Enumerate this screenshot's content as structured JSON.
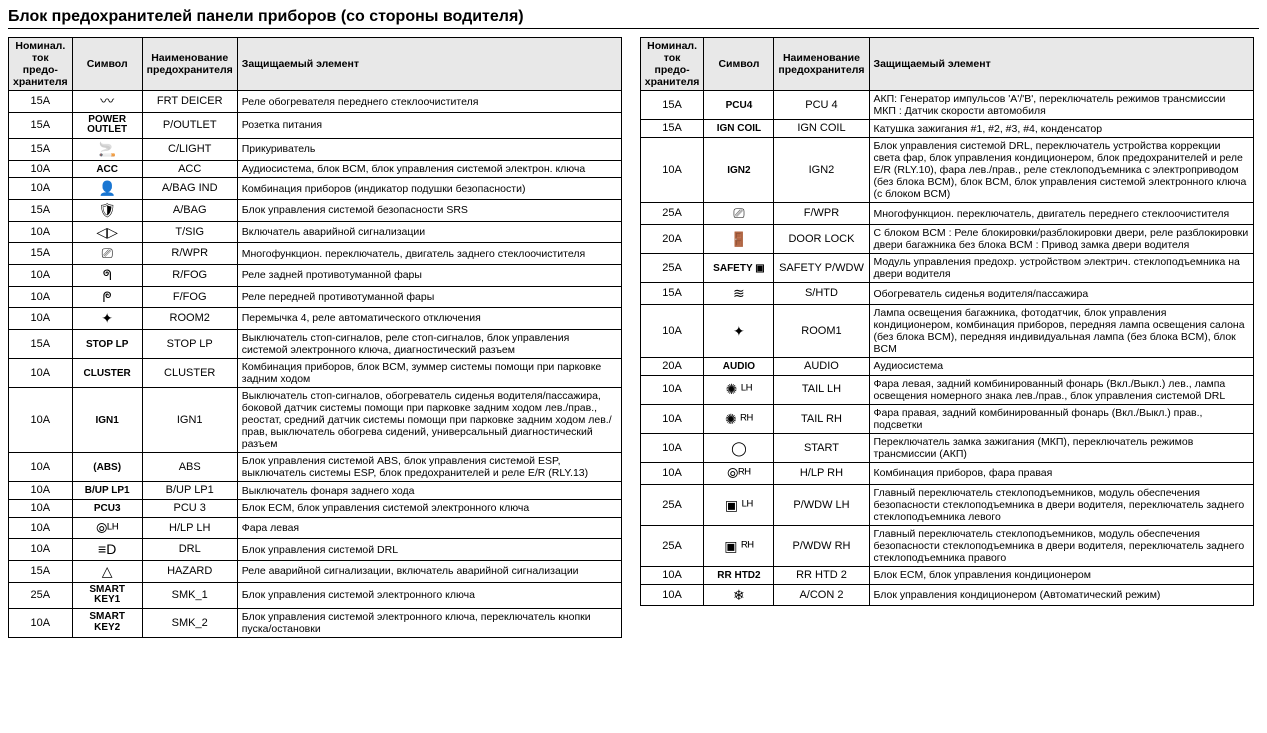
{
  "title": "Блок предохранителей панели приборов (со стороны водителя)",
  "headers": {
    "amp": "Номинал. ток предо-хранителя",
    "sym": "Символ",
    "name": "Наименование предохранителя",
    "desc": "Защищаемый элемент"
  },
  "left": [
    {
      "amp": "15A",
      "sym": "〰",
      "symKind": "ico",
      "name": "FRT DEICER",
      "desc": "Реле обогревателя переднего стеклоочистителя"
    },
    {
      "amp": "15A",
      "sym": "POWER\nOUTLET",
      "symKind": "txt",
      "name": "P/OUTLET",
      "desc": "Розетка питания"
    },
    {
      "amp": "15A",
      "sym": "🚬",
      "symKind": "ico",
      "name": "C/LIGHT",
      "desc": "Прикуриватель"
    },
    {
      "amp": "10A",
      "sym": "ACC",
      "symKind": "txt",
      "name": "ACC",
      "desc": "Аудиосистема, блок BCM, блок управления системой электрон. ключа"
    },
    {
      "amp": "10A",
      "sym": "👤",
      "symKind": "ico",
      "name": "A/BAG IND",
      "desc": "Комбинация приборов (индикатор подушки безопасности)"
    },
    {
      "amp": "15A",
      "sym": "🛡",
      "symKind": "ico",
      "name": "A/BAG",
      "desc": "Блок управления системой безопасности SRS"
    },
    {
      "amp": "10A",
      "sym": "◁▷",
      "symKind": "ico",
      "name": "T/SIG",
      "desc": "Включатель аварийной сигнализации"
    },
    {
      "amp": "15A",
      "sym": "⎚",
      "symKind": "ico",
      "name": "R/WPR",
      "desc": "Многофункцион. переключатель, двигатель заднего стеклоочистителя"
    },
    {
      "amp": "10A",
      "sym": "ᖗ",
      "symKind": "ico",
      "name": "R/FOG",
      "desc": "Реле задней противотуманной фары"
    },
    {
      "amp": "10A",
      "sym": "ᖘ",
      "symKind": "ico",
      "name": "F/FOG",
      "desc": "Реле передней противотуманной фары"
    },
    {
      "amp": "10A",
      "sym": "✦",
      "symKind": "ico",
      "name": "ROOM2",
      "desc": "Перемычка 4, реле автоматического отключения"
    },
    {
      "amp": "15A",
      "sym": "STOP LP",
      "symKind": "txt",
      "name": "STOP LP",
      "desc": "Выключатель стоп-сигналов, реле стоп-сигналов, блок управления системой электронного ключа, диагностический разъем"
    },
    {
      "amp": "10A",
      "sym": "CLUSTER",
      "symKind": "txt",
      "name": "CLUSTER",
      "desc": "Комбинация приборов, блок BCM, зуммер системы помощи при парковке задним ходом"
    },
    {
      "amp": "10A",
      "sym": "IGN1",
      "symKind": "txt",
      "name": "IGN1",
      "desc": "Выключатель стоп-сигналов, обогреватель сиденья водителя/пассажира, боковой датчик системы помощи при парковке задним ходом лев./прав., реостат, средний датчик системы помощи при парковке задним ходом лев./прав, выключатель обогрева сидений, универсальный диагностический разъем"
    },
    {
      "amp": "10A",
      "sym": "(ABS)",
      "symKind": "txt",
      "name": "ABS",
      "desc": "Блок управления системой ABS, блок управления системой ESP, выключатель системы ESP, блок предохранителей и реле E/R (RLY.13)"
    },
    {
      "amp": "10A",
      "sym": "B/UP LP1",
      "symKind": "txt",
      "name": "B/UP LP1",
      "desc": "Выключатель фонаря заднего хода"
    },
    {
      "amp": "10A",
      "sym": "PCU3",
      "symKind": "txt",
      "name": "PCU 3",
      "desc": "Блок ECM, блок управления системой электронного ключа"
    },
    {
      "amp": "10A",
      "sym": "⦾ᴸᴴ",
      "symKind": "ico",
      "name": "H/LP LH",
      "desc": "Фара левая"
    },
    {
      "amp": "10A",
      "sym": "≡D",
      "symKind": "ico",
      "name": "DRL",
      "desc": "Блок управления системой DRL"
    },
    {
      "amp": "15A",
      "sym": "△",
      "symKind": "ico",
      "name": "HAZARD",
      "desc": "Реле аварийной сигнализации, включатель аварийной сигнализации"
    },
    {
      "amp": "25A",
      "sym": "SMART KEY1",
      "symKind": "txt",
      "name": "SMK_1",
      "desc": "Блок управления системой электронного ключа"
    },
    {
      "amp": "10A",
      "sym": "SMART KEY2",
      "symKind": "txt",
      "name": "SMK_2",
      "desc": "Блок управления системой электронного ключа, переключатель кнопки пуска/остановки"
    }
  ],
  "right": [
    {
      "amp": "15A",
      "sym": "PCU4",
      "symKind": "txt",
      "name": "PCU 4",
      "desc": "АКП: Генератор импульсов 'A'/'B', переключатель режимов трансмиссии МКП : Датчик скорости автомобиля"
    },
    {
      "amp": "15A",
      "sym": "IGN COIL",
      "symKind": "txt",
      "name": "IGN COIL",
      "desc": "Катушка зажигания #1, #2, #3, #4, конденсатор"
    },
    {
      "amp": "10A",
      "sym": "IGN2",
      "symKind": "txt",
      "name": "IGN2",
      "desc": "Блок управления системой DRL, переключатель устройства коррекции света фар, блок управления кондиционером, блок предохранителей и реле E/R (RLY.10), фара лев./прав., реле стеклоподъемника с электроприводом (без блока BCM), блок BCM, блок управления системой электронного ключа (с блоком BCM)"
    },
    {
      "amp": "25A",
      "sym": "⎚",
      "symKind": "ico",
      "name": "F/WPR",
      "desc": "Многофункцион. переключатель, двигатель переднего стеклоочистителя"
    },
    {
      "amp": "20A",
      "sym": "🚪",
      "symKind": "ico",
      "name": "DOOR LOCK",
      "desc": "С блоком BCM : Реле блокировки/разблокировки двери, реле разблокировки двери багажника без блока BCM : Привод замка двери водителя"
    },
    {
      "amp": "25A",
      "sym": "SAFETY ▣",
      "symKind": "txt",
      "name": "SAFETY P/WDW",
      "desc": "Модуль управления предохр. устройством электрич. стеклоподъемника на двери водителя"
    },
    {
      "amp": "15A",
      "sym": "≋",
      "symKind": "ico",
      "name": "S/HTD",
      "desc": "Обогреватель сиденья водителя/пассажира"
    },
    {
      "amp": "10A",
      "sym": "✦",
      "symKind": "ico",
      "name": "ROOM1",
      "desc": "Лампа освещения багажника, фотодатчик, блок управления кондиционером, комбинация приборов, передняя лампа освещения салона (без блока BCM), передняя индивидуальная лампа (без блока BCM), блок BCM"
    },
    {
      "amp": "20A",
      "sym": "AUDIO",
      "symKind": "txt",
      "name": "AUDIO",
      "desc": "Аудиосистема"
    },
    {
      "amp": "10A",
      "sym": "✺ ᴸᴴ",
      "symKind": "ico",
      "name": "TAIL LH",
      "desc": "Фара левая, задний комбинированный фонарь (Вкл./Выкл.) лев., лампа освещения номерного знака лев./прав., блок управления системой DRL"
    },
    {
      "amp": "10A",
      "sym": "✺ ᴿᴴ",
      "symKind": "ico",
      "name": "TAIL RH",
      "desc": "Фара правая, задний комбинированный фонарь (Вкл./Выкл.) прав., подсветки"
    },
    {
      "amp": "10A",
      "sym": "◯",
      "symKind": "ico",
      "name": "START",
      "desc": "Переключатель замка зажигания (МКП), переключатель режимов трансмиссии (АКП)"
    },
    {
      "amp": "10A",
      "sym": "⦾ᴿᴴ",
      "symKind": "ico",
      "name": "H/LP RH",
      "desc": "Комбинация приборов, фара правая"
    },
    {
      "amp": "25A",
      "sym": "▣ ᴸᴴ",
      "symKind": "ico",
      "name": "P/WDW LH",
      "desc": "Главный переключатель стеклоподъемников, модуль обеспечения безопасности стеклоподъемника в двери водителя, переключатель заднего стеклоподъемника левого"
    },
    {
      "amp": "25A",
      "sym": "▣ ᴿᴴ",
      "symKind": "ico",
      "name": "P/WDW RH",
      "desc": "Главный переключатель стеклоподъемников, модуль обеспечения безопасности стеклоподъемника в двери водителя, переключатель заднего стеклоподъемника правого"
    },
    {
      "amp": "10A",
      "sym": "RR HTD2",
      "symKind": "txt",
      "name": "RR HTD 2",
      "desc": "Блок ECM, блок управления кондиционером"
    },
    {
      "amp": "10A",
      "sym": "❄",
      "symKind": "ico",
      "name": "A/CON 2",
      "desc": "Блок управления кондиционером (Автоматический режим)"
    }
  ]
}
